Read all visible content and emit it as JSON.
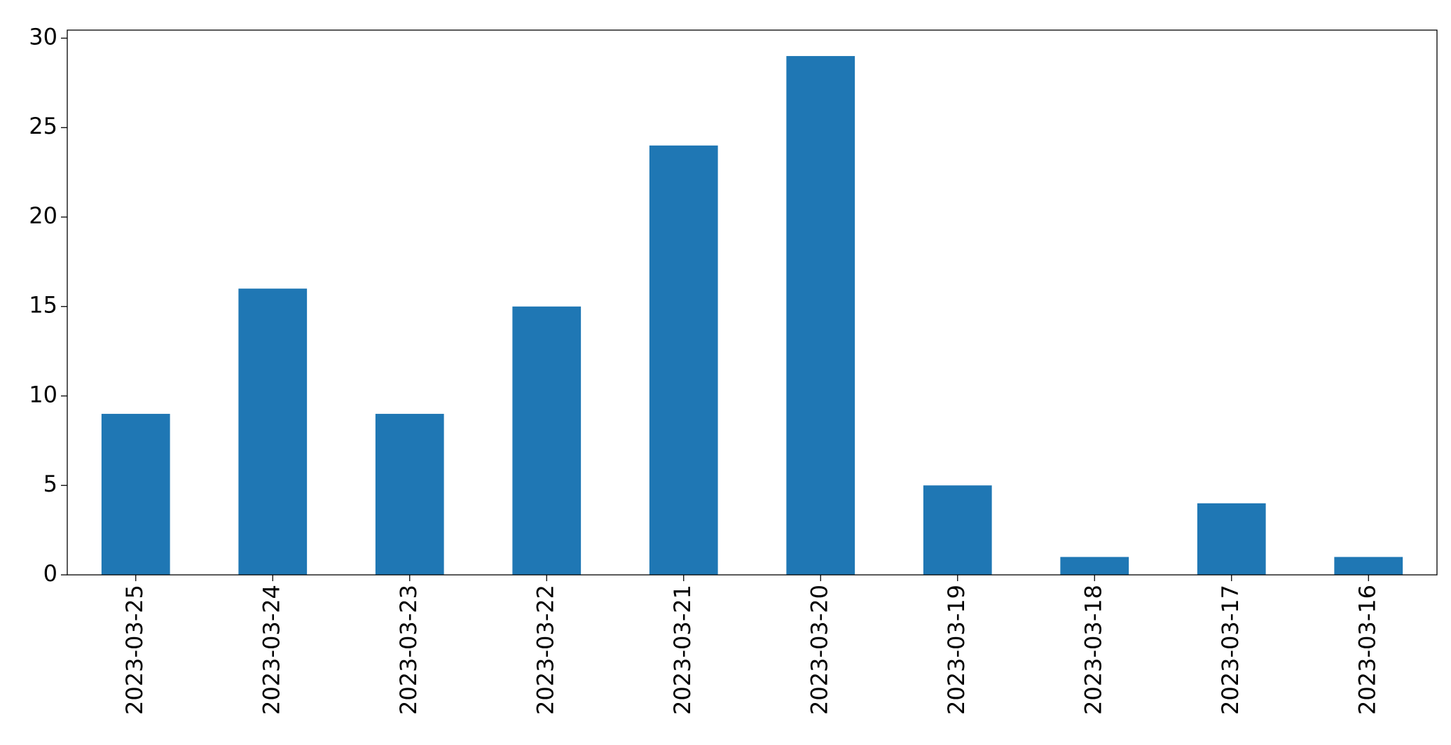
{
  "chart_data": {
    "type": "bar",
    "categories": [
      "2023-03-25",
      "2023-03-24",
      "2023-03-23",
      "2023-03-22",
      "2023-03-21",
      "2023-03-20",
      "2023-03-19",
      "2023-03-18",
      "2023-03-17",
      "2023-03-16"
    ],
    "values": [
      9,
      16,
      9,
      15,
      24,
      29,
      5,
      1,
      4,
      1
    ],
    "color": "#1f77b4",
    "ylim": [
      0,
      30.45
    ],
    "yticks": [
      0,
      5,
      10,
      15,
      20,
      25,
      30
    ],
    "grid": false
  }
}
